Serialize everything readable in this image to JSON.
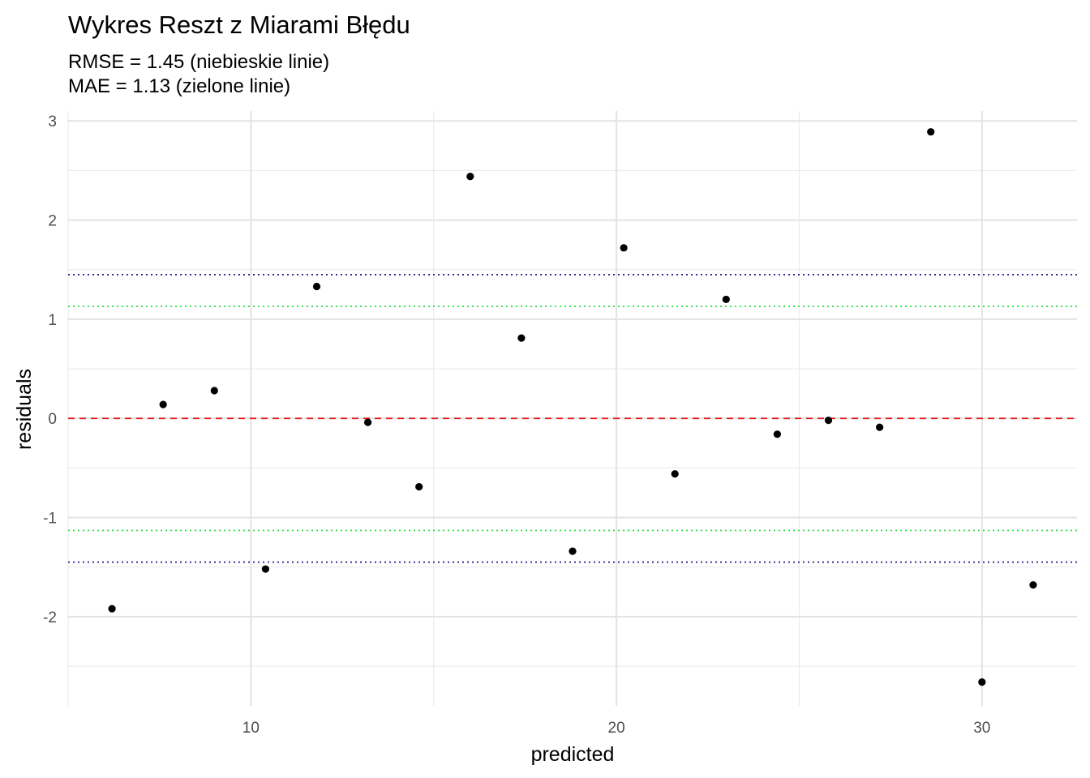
{
  "chart_data": {
    "type": "scatter",
    "title": "Wykres Reszt z Miarami Błędu",
    "subtitle_lines": [
      "RMSE = 1.45 (niebieskie linie)",
      "MAE = 1.13 (zielone linie)"
    ],
    "xlabel": "predicted",
    "ylabel": "residuals",
    "xlim": [
      5,
      32.6
    ],
    "ylim": [
      -2.9,
      3.1
    ],
    "x_ticks": [
      10,
      20,
      30
    ],
    "x_tick_labels": [
      "10",
      "20",
      "30"
    ],
    "x_minor_ticks": [
      5,
      15,
      25
    ],
    "y_ticks": [
      -2,
      -1,
      0,
      1,
      2,
      3
    ],
    "y_tick_labels": [
      "-2",
      "-1",
      "0",
      "1",
      "2",
      "3"
    ],
    "y_minor_ticks": [
      -2.5,
      -1.5,
      -0.5,
      0.5,
      1.5,
      2.5
    ],
    "grid": true,
    "reference_lines": [
      {
        "y": 0,
        "color": "#e41a1c",
        "style": "dashed"
      },
      {
        "y": 1.45,
        "color": "#1a1a8c",
        "style": "dotted"
      },
      {
        "y": -1.45,
        "color": "#1a1a8c",
        "style": "dotted"
      },
      {
        "y": 1.13,
        "color": "#22dd44",
        "style": "dotted"
      },
      {
        "y": -1.13,
        "color": "#22dd44",
        "style": "dotted"
      }
    ],
    "point_color": "#000000",
    "points": [
      {
        "x": 6.2,
        "y": -1.92
      },
      {
        "x": 7.6,
        "y": 0.14
      },
      {
        "x": 9.0,
        "y": 0.28
      },
      {
        "x": 10.4,
        "y": -1.52
      },
      {
        "x": 11.8,
        "y": 1.33
      },
      {
        "x": 13.2,
        "y": -0.04
      },
      {
        "x": 14.6,
        "y": -0.69
      },
      {
        "x": 16.0,
        "y": 2.44
      },
      {
        "x": 17.4,
        "y": 0.81
      },
      {
        "x": 18.8,
        "y": -1.34
      },
      {
        "x": 20.2,
        "y": 1.72
      },
      {
        "x": 21.6,
        "y": -0.56
      },
      {
        "x": 23.0,
        "y": 1.2
      },
      {
        "x": 24.4,
        "y": -0.16
      },
      {
        "x": 25.8,
        "y": -0.02
      },
      {
        "x": 27.2,
        "y": -0.09
      },
      {
        "x": 28.6,
        "y": 2.89
      },
      {
        "x": 30.0,
        "y": -2.66
      },
      {
        "x": 31.4,
        "y": -1.68
      }
    ]
  }
}
